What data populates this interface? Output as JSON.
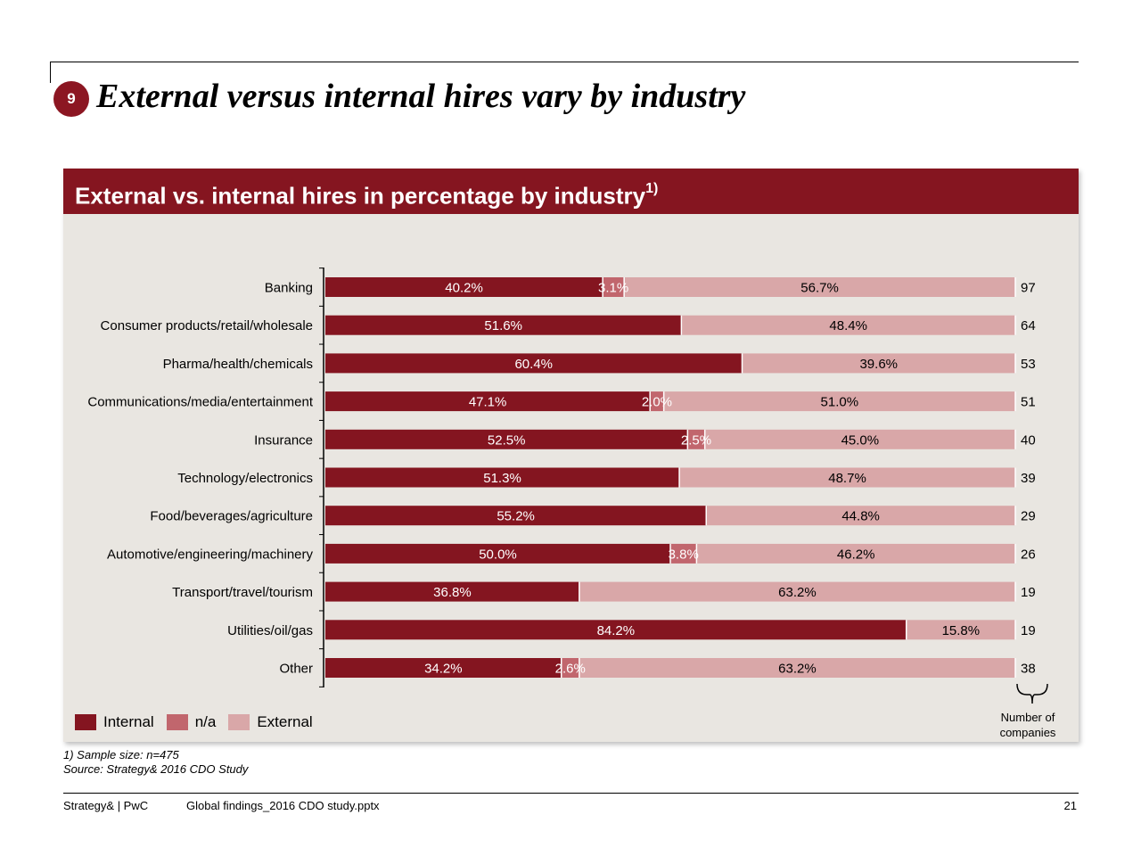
{
  "header": {
    "slide_number": "9",
    "title": "External versus internal hires vary by industry"
  },
  "panel": {
    "title": "External vs. internal hires in percentage by industry",
    "title_sup": "1)"
  },
  "chart_data": {
    "type": "bar",
    "orientation": "horizontal",
    "stacked": true,
    "unit": "%",
    "categories": [
      "Banking",
      "Consumer products/retail/wholesale",
      "Pharma/health/chemicals",
      "Communications/media/entertainment",
      "Insurance",
      "Technology/electronics",
      "Food/beverages/agriculture",
      "Automotive/engineering/machinery",
      "Transport/travel/tourism",
      "Utilities/oil/gas",
      "Other"
    ],
    "series": [
      {
        "name": "Internal",
        "color": "#841520",
        "label_color": "#ffffff",
        "values": [
          40.2,
          51.6,
          60.4,
          47.1,
          52.5,
          51.3,
          55.2,
          50.0,
          36.8,
          84.2,
          34.2
        ]
      },
      {
        "name": "n/a",
        "color": "#c1666d",
        "label_color": "#ffffff",
        "values": [
          3.1,
          0,
          0,
          2.0,
          2.5,
          0,
          0,
          3.8,
          0,
          0,
          2.6
        ]
      },
      {
        "name": "External",
        "color": "#d9a7a8",
        "label_color": "#000000",
        "values": [
          56.7,
          48.4,
          39.6,
          51.0,
          45.0,
          48.7,
          44.8,
          46.2,
          63.2,
          15.8,
          63.2
        ]
      }
    ],
    "value_labels": [
      [
        "40.2%",
        "3.1%",
        "56.7%"
      ],
      [
        "51.6%",
        "",
        "48.4%"
      ],
      [
        "60.4%",
        "",
        "39.6%"
      ],
      [
        "47.1%",
        "2.0%",
        "51.0%"
      ],
      [
        "52.5%",
        "2.5%",
        "45.0%"
      ],
      [
        "51.3%",
        "",
        "48.7%"
      ],
      [
        "55.2%",
        "",
        "44.8%"
      ],
      [
        "50.0%",
        "3.8%",
        "46.2%"
      ],
      [
        "36.8%",
        "",
        "63.2%"
      ],
      [
        "84.2%",
        "",
        "15.8%"
      ],
      [
        "34.2%",
        "2.6%",
        "63.2%"
      ]
    ],
    "companies": [
      "97",
      "64",
      "53",
      "51",
      "40",
      "39",
      "29",
      "26",
      "19",
      "19",
      "38"
    ],
    "companies_label": "Number of companies",
    "xlim": [
      0,
      100
    ],
    "legend": "bottom-left"
  },
  "legend": {
    "items": [
      {
        "label": "Internal",
        "color": "#841520"
      },
      {
        "label": "n/a",
        "color": "#c1666d"
      },
      {
        "label": "External",
        "color": "#d9a7a8"
      }
    ]
  },
  "companies_caption_line1": "Number of",
  "companies_caption_line2": "companies",
  "footnote": {
    "line1": "1) Sample size: n=475",
    "line2": "Source: Strategy& 2016 CDO Study"
  },
  "footer": {
    "brand": "Strategy& | PwC",
    "file": "Global findings_2016 CDO study.pptx",
    "page": "21"
  }
}
